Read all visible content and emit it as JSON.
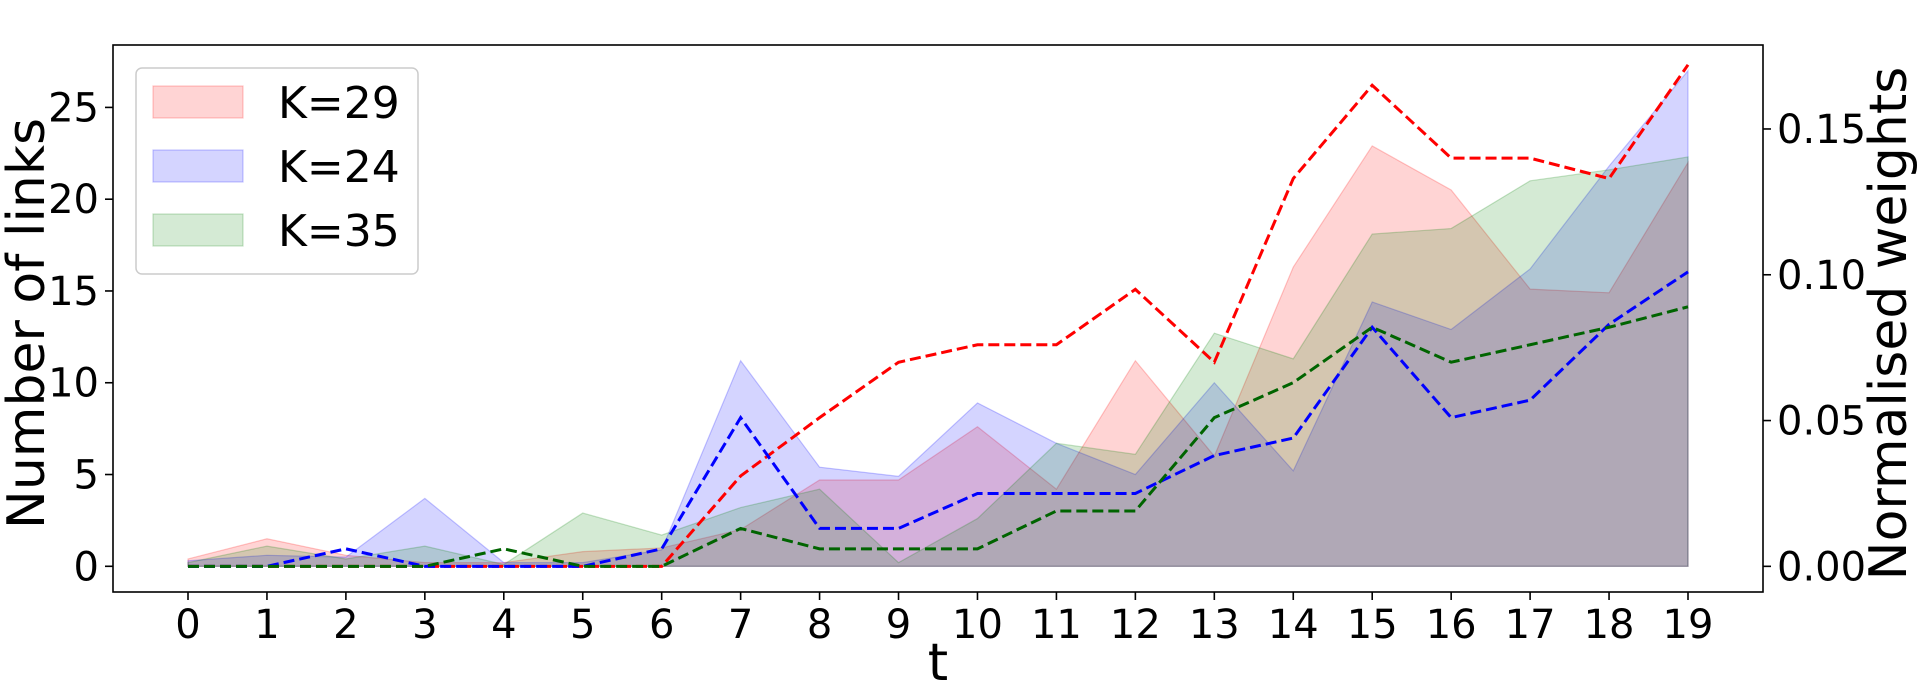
{
  "chart_data": {
    "type": "area",
    "title": "",
    "xlabel": "t",
    "ylabel": "Number of links",
    "y2label": "Normalised weights",
    "x": [
      0,
      1,
      2,
      3,
      4,
      5,
      6,
      7,
      8,
      9,
      10,
      11,
      12,
      13,
      14,
      15,
      16,
      17,
      18,
      19
    ],
    "xticks": [
      "0",
      "1",
      "2",
      "3",
      "4",
      "5",
      "6",
      "7",
      "8",
      "9",
      "10",
      "11",
      "12",
      "13",
      "14",
      "15",
      "16",
      "17",
      "18",
      "19"
    ],
    "xlim": [
      -0.95,
      19.95
    ],
    "ylim": [
      -1.4,
      28.4
    ],
    "yticks": [
      0,
      5,
      10,
      15,
      20,
      25
    ],
    "y2lim": [
      -0.0088,
      0.1788
    ],
    "y2ticks": [
      0.0,
      0.05,
      0.1,
      0.15
    ],
    "y2ticklabels": [
      "0.00",
      "0.05",
      "0.10",
      "0.15"
    ],
    "grid": false,
    "legend_position": "top-left",
    "series": [
      {
        "name": "K=29",
        "kind": "area",
        "axis": "left",
        "color": "#ff0000",
        "values": [
          0.4,
          1.5,
          0.6,
          0.2,
          0.2,
          0.8,
          1.0,
          2.0,
          4.7,
          4.7,
          7.6,
          4.2,
          11.2,
          6.0,
          16.3,
          22.9,
          20.5,
          15.1,
          14.9,
          22.0
        ]
      },
      {
        "name": "K=24",
        "kind": "area",
        "axis": "left",
        "color": "#0000ff",
        "values": [
          0.3,
          0.6,
          0.5,
          3.7,
          0.2,
          0.2,
          0.9,
          11.2,
          5.4,
          4.9,
          8.9,
          6.7,
          5.0,
          10.0,
          5.2,
          14.4,
          12.9,
          16.2,
          21.8,
          27.0
        ]
      },
      {
        "name": "K=35",
        "kind": "area",
        "axis": "left",
        "color": "#008000",
        "values": [
          0.2,
          1.1,
          0.4,
          1.1,
          0.1,
          2.9,
          1.7,
          3.2,
          4.2,
          0.2,
          2.6,
          6.7,
          6.1,
          12.7,
          11.3,
          18.1,
          18.4,
          21.0,
          21.6,
          22.3
        ]
      },
      {
        "kind": "line",
        "axis": "right",
        "color": "#ff0000",
        "values": [
          0.0,
          0.0,
          0.0,
          0.0,
          0.0,
          0.0,
          0.0,
          0.031,
          0.051,
          0.07,
          0.076,
          0.076,
          0.095,
          0.07,
          0.133,
          0.165,
          0.14,
          0.14,
          0.133,
          0.172
        ]
      },
      {
        "kind": "line",
        "axis": "right",
        "color": "#0000ff",
        "values": [
          0.0,
          0.0,
          0.006,
          0.0,
          0.0,
          0.0,
          0.006,
          0.051,
          0.013,
          0.013,
          0.025,
          0.025,
          0.025,
          0.038,
          0.044,
          0.082,
          0.051,
          0.057,
          0.083,
          0.101
        ]
      },
      {
        "kind": "line",
        "axis": "right",
        "color": "#006400",
        "values": [
          0.0,
          0.0,
          0.0,
          0.0,
          0.006,
          0.0,
          0.0,
          0.013,
          0.006,
          0.006,
          0.006,
          0.019,
          0.019,
          0.051,
          0.063,
          0.082,
          0.07,
          0.076,
          0.082,
          0.089
        ]
      }
    ]
  }
}
